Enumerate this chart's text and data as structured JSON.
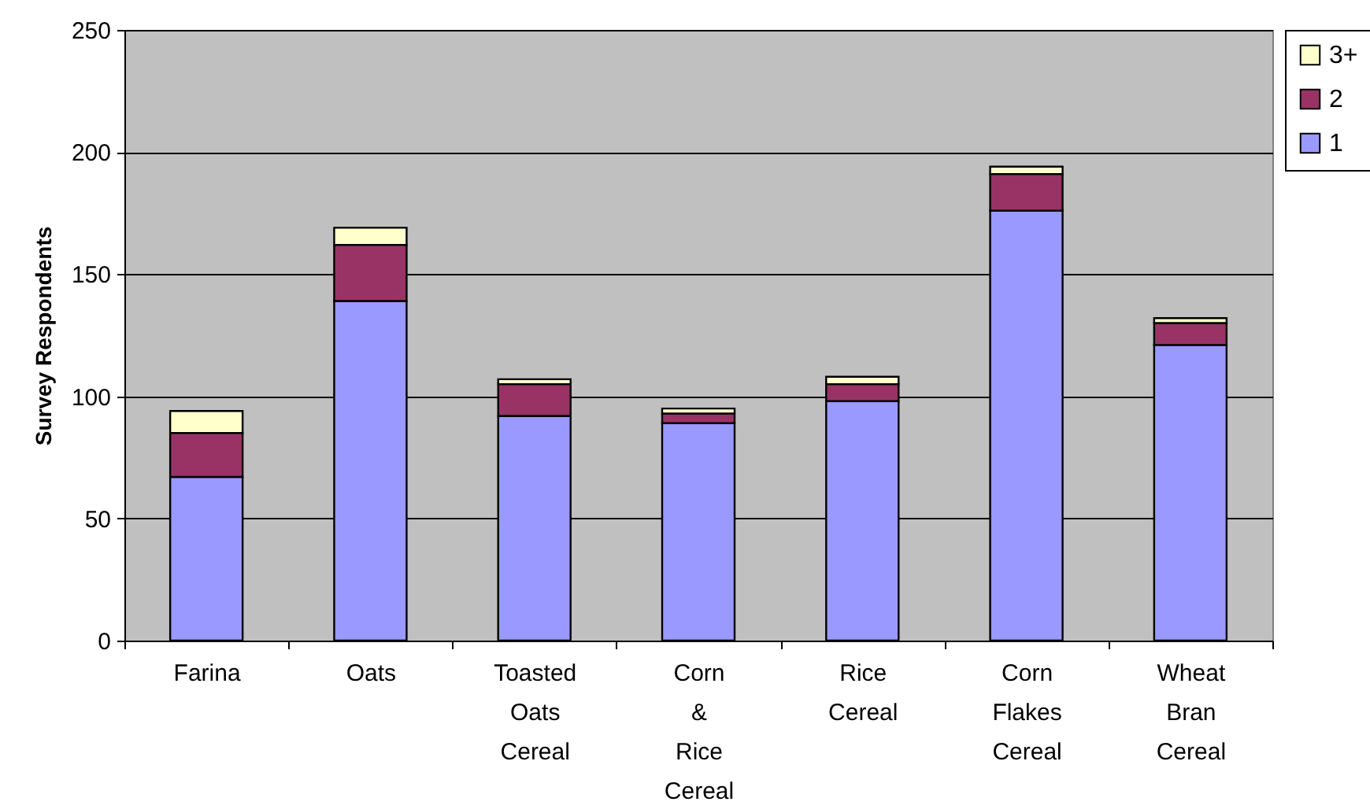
{
  "chart_data": {
    "type": "bar",
    "stacked": true,
    "ylabel": "Survey Respondents",
    "categories": [
      "Farina",
      "Oats",
      "Toasted Oats Cereal",
      "Corn & Rice Cereal",
      "Rice Cereal",
      "Corn Flakes Cereal",
      "Wheat Bran Cereal"
    ],
    "series": [
      {
        "name": "1",
        "color": "#9999ff",
        "values": [
          67,
          139,
          92,
          89,
          98,
          176,
          121
        ]
      },
      {
        "name": "2",
        "color": "#993366",
        "values": [
          18,
          23,
          13,
          4,
          7,
          15,
          9
        ]
      },
      {
        "name": "3+",
        "color": "#ffffcc",
        "values": [
          9,
          7,
          2,
          2,
          3,
          3,
          2
        ]
      }
    ],
    "ylim": [
      0,
      250
    ],
    "yticks": [
      0,
      50,
      100,
      150,
      200,
      250
    ],
    "grid": "y",
    "legend": "right"
  }
}
